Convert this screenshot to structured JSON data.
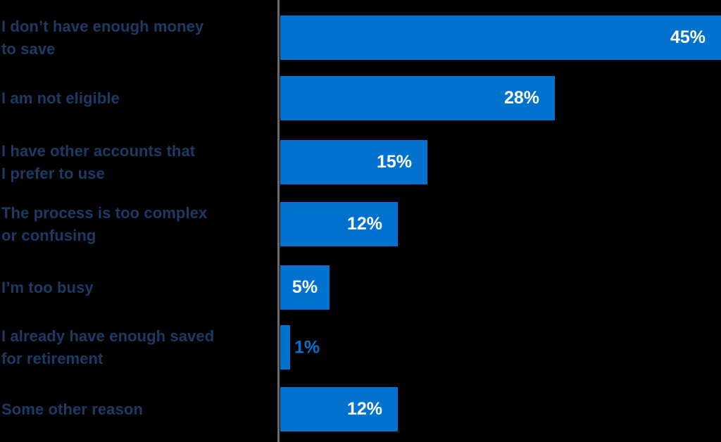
{
  "chart_data": {
    "type": "bar",
    "orientation": "horizontal",
    "title": "",
    "xlabel": "",
    "ylabel": "",
    "categories": [
      "I don’t have enough money to save",
      "I am not eligible",
      "I have other accounts that I prefer to use",
      "The process is too complex or confusing",
      "I’m too busy",
      "I already have enough saved for retirement",
      "Some other reason"
    ],
    "values": [
      45,
      28,
      15,
      12,
      5,
      1,
      12
    ],
    "value_labels": [
      "45%",
      "28%",
      "15%",
      "12%",
      "5%",
      "1%",
      "12%"
    ],
    "xlim": [
      0,
      45
    ],
    "grid": false,
    "legend": false,
    "layout": {
      "value_labels_position": "inside-right except 5% centered and 1% outside",
      "baseline": "vertical gray line at left of bars"
    },
    "colors": {
      "bar": "#0173cf",
      "category_text": "#1d3a64",
      "value_label_inside": "#ffffff",
      "value_label_outside": "#0173cf",
      "axis_line": "#6b6b6b",
      "background": "#000000"
    }
  },
  "rows": [
    {
      "label": "I don’t have enough money\nto save",
      "value": 45,
      "value_label": "45%",
      "value_label_placement": "inside-right"
    },
    {
      "label": "I am not eligible",
      "value": 28,
      "value_label": "28%",
      "value_label_placement": "inside-right"
    },
    {
      "label": "I have other accounts that\nI prefer to use",
      "value": 15,
      "value_label": "15%",
      "value_label_placement": "inside-right"
    },
    {
      "label": "The process is too complex\nor confusing",
      "value": 12,
      "value_label": "12%",
      "value_label_placement": "inside-right"
    },
    {
      "label": "I’m too busy",
      "value": 5,
      "value_label": "5%",
      "value_label_placement": "inside-center"
    },
    {
      "label": "I already have enough saved\nfor retirement",
      "value": 1,
      "value_label": "1%",
      "value_label_placement": "outside-right"
    },
    {
      "label": "Some other reason",
      "value": 12,
      "value_label": "12%",
      "value_label_placement": "inside-right"
    }
  ]
}
